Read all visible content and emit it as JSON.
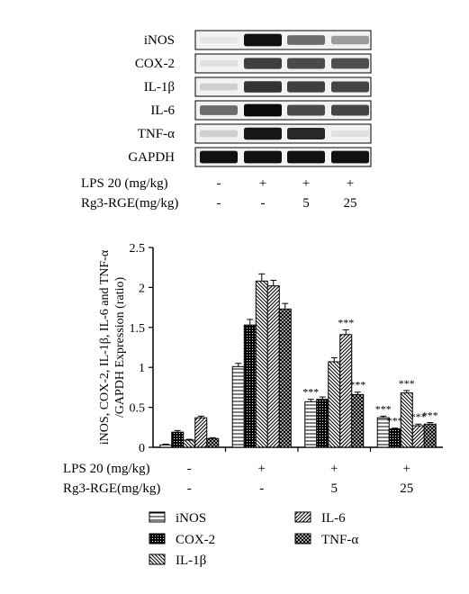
{
  "blot": {
    "bands": [
      "iNOS",
      "COX-2",
      "IL-1β",
      "IL-6",
      "TNF-α",
      "GAPDH"
    ],
    "intensity": [
      [
        0.02,
        0.95,
        0.55,
        0.35
      ],
      [
        0.05,
        0.75,
        0.7,
        0.68
      ],
      [
        0.12,
        0.8,
        0.75,
        0.72
      ],
      [
        0.55,
        0.98,
        0.7,
        0.72
      ],
      [
        0.12,
        0.92,
        0.85,
        0.05
      ],
      [
        0.95,
        0.95,
        0.95,
        0.95
      ]
    ],
    "conditions": [
      {
        "label": "LPS 20 (mg/kg)",
        "values": [
          "-",
          "+",
          "+",
          "+"
        ]
      },
      {
        "label": "Rg3-RGE(mg/kg)",
        "values": [
          "-",
          "-",
          "5",
          "25"
        ]
      }
    ]
  },
  "chart_data": {
    "type": "bar",
    "title": "",
    "ylabel_line1": "iNOS, COX-2, IL-1β, IL-6 and TNF-α",
    "ylabel_line2": "/GAPDH Expression (ratio)",
    "ylim": [
      0,
      2.5
    ],
    "yticks": [
      "0",
      "0.5",
      "1",
      "1.5",
      "2",
      "2.5"
    ],
    "ytick_values": [
      0,
      0.5,
      1,
      1.5,
      2,
      2.5
    ],
    "groups": 4,
    "series": [
      {
        "name": "iNOS",
        "pattern": "hlines",
        "values": [
          0.03,
          1.01,
          0.57,
          0.37
        ],
        "errors": [
          0.01,
          0.04,
          0.03,
          0.02
        ],
        "marks": [
          "",
          "",
          "***",
          "***"
        ]
      },
      {
        "name": "COX-2",
        "pattern": "dots",
        "values": [
          0.19,
          1.53,
          0.6,
          0.23
        ],
        "errors": [
          0.02,
          0.07,
          0.03,
          0.01
        ],
        "marks": [
          "",
          "",
          "",
          "***"
        ]
      },
      {
        "name": "IL-1β",
        "pattern": "diag",
        "values": [
          0.09,
          2.08,
          1.07,
          0.68
        ],
        "errors": [
          0.01,
          0.09,
          0.05,
          0.03
        ],
        "marks": [
          "",
          "",
          "",
          "***"
        ]
      },
      {
        "name": "IL-6",
        "pattern": "cross",
        "values": [
          0.37,
          2.02,
          1.41,
          0.27
        ],
        "errors": [
          0.02,
          0.07,
          0.06,
          0.02
        ],
        "marks": [
          "",
          "",
          "***",
          "***"
        ]
      },
      {
        "name": "TNF-α",
        "pattern": "grid",
        "values": [
          0.11,
          1.73,
          0.66,
          0.29
        ],
        "errors": [
          0.01,
          0.07,
          0.03,
          0.02
        ],
        "marks": [
          "",
          "",
          "***",
          "***"
        ]
      }
    ],
    "conditions": [
      {
        "label": "LPS 20 (mg/kg)",
        "values": [
          "-",
          "+",
          "+",
          "+"
        ]
      },
      {
        "label": "Rg3-RGE(mg/kg)",
        "values": [
          "-",
          "-",
          "5",
          "25"
        ]
      }
    ],
    "legend_position": "bottom"
  }
}
